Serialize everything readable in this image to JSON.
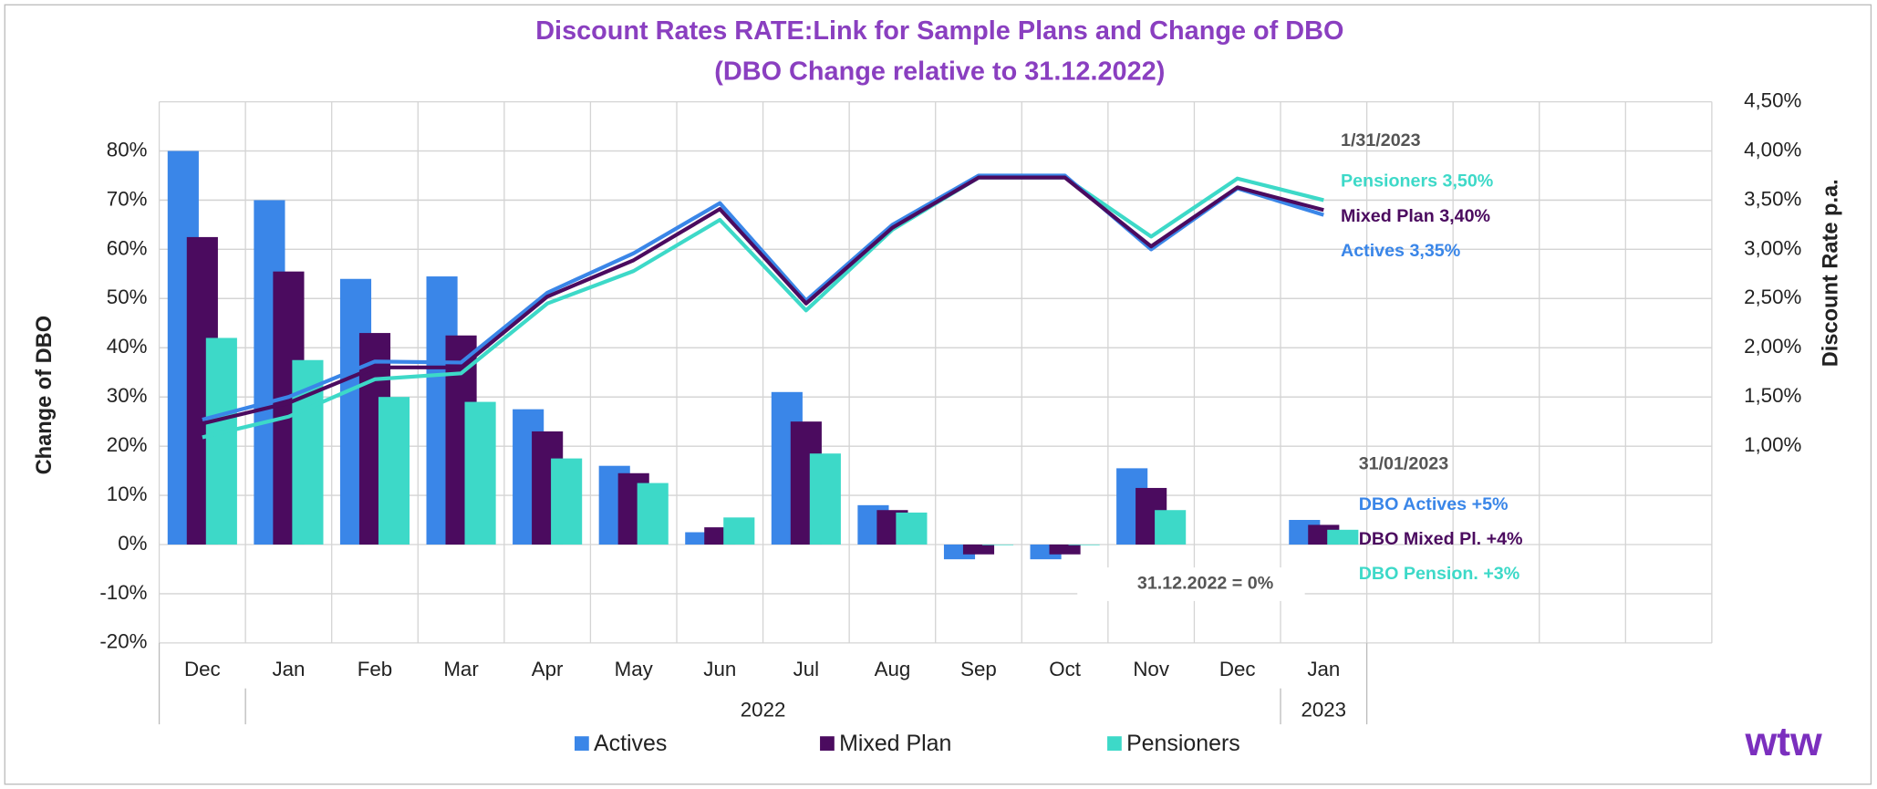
{
  "chart_data": {
    "type": "bar_line",
    "title": "Discount Rates RATE:Link for Sample Plans and Change of DBO",
    "subtitle": "(DBO Change relative to 31.12.2022)",
    "y_label": "Change of DBO",
    "y2_label": "Discount Rate p.a.",
    "categories": [
      "Dec",
      "Jan",
      "Feb",
      "Mar",
      "Apr",
      "May",
      "Jun",
      "Jul",
      "Aug",
      "Sep",
      "Oct",
      "Nov",
      "Dec",
      "Jan",
      null,
      null,
      null,
      null
    ],
    "x_groups": [
      "2022",
      "2023"
    ],
    "ylim": [
      -20,
      90
    ],
    "yticks": [
      {
        "value": -20,
        "label": "-20%"
      },
      {
        "value": -10,
        "label": "-10%"
      },
      {
        "value": 0,
        "label": "0%"
      },
      {
        "value": 10,
        "label": "10%"
      },
      {
        "value": 20,
        "label": "20%"
      },
      {
        "value": 30,
        "label": "30%"
      },
      {
        "value": 40,
        "label": "40%"
      },
      {
        "value": 50,
        "label": "50%"
      },
      {
        "value": 60,
        "label": "60%"
      },
      {
        "value": 70,
        "label": "70%"
      },
      {
        "value": 80,
        "label": "80%"
      }
    ],
    "y2lim": [
      -1,
      4.5
    ],
    "y2ticks": [
      {
        "value": 1,
        "label": "1,00%"
      },
      {
        "value": 1.5,
        "label": "1,50%"
      },
      {
        "value": 2,
        "label": "2,00%"
      },
      {
        "value": 2.5,
        "label": "2,50%"
      },
      {
        "value": 3,
        "label": "3,00%"
      },
      {
        "value": 3.5,
        "label": "3,50%"
      },
      {
        "value": 4,
        "label": "4,00%"
      },
      {
        "value": 4.5,
        "label": "4,50%"
      }
    ],
    "grid": true,
    "series": [
      {
        "name": "Actives",
        "color": "#3a86e8",
        "values": [
          80,
          70,
          54,
          54.5,
          27.5,
          16,
          2.5,
          31,
          8,
          -3,
          -3,
          15.5,
          null,
          5,
          null,
          null,
          null,
          null
        ]
      },
      {
        "name": "Mixed Plan",
        "color": "#4b0b5f",
        "values": [
          62.5,
          55.5,
          43,
          42.5,
          23,
          14.5,
          3.5,
          25,
          7,
          -2,
          -2,
          11.5,
          null,
          4,
          null,
          null,
          null,
          null
        ]
      },
      {
        "name": "Pensioners",
        "color": "#3dd9c8",
        "values": [
          42,
          37.5,
          30,
          29,
          17.5,
          12.5,
          5.5,
          18.5,
          6.5,
          0,
          0,
          7,
          null,
          3,
          null,
          null,
          null,
          null
        ]
      }
    ],
    "rate_series": [
      {
        "axis": "y2",
        "color": "#3dd9c8",
        "values": [
          1.09,
          1.3,
          1.68,
          1.74,
          2.45,
          2.78,
          3.3,
          2.38,
          3.2,
          3.73,
          3.73,
          3.13,
          3.72,
          3.5,
          null,
          null,
          null,
          null
        ]
      },
      {
        "axis": "y2",
        "color": "#3a86e8",
        "values": [
          1.27,
          1.5,
          1.86,
          1.85,
          2.56,
          2.96,
          3.47,
          2.48,
          3.25,
          3.75,
          3.75,
          3.0,
          3.62,
          3.35,
          null,
          null,
          null,
          null
        ]
      },
      {
        "axis": "y2",
        "color": "#4b0b5f",
        "values": [
          1.23,
          1.44,
          1.8,
          1.8,
          2.52,
          2.89,
          3.41,
          2.45,
          3.22,
          3.73,
          3.73,
          3.03,
          3.63,
          3.4,
          null,
          null,
          null,
          null
        ]
      }
    ],
    "annotations": {
      "rate_date": "1/31/2023",
      "rate_pensioners": "Pensioners 3,50%",
      "rate_mixed": "Mixed Plan 3,40%",
      "rate_actives": "Actives 3,35%",
      "dbo_date": "31/01/2023",
      "dbo_actives": "DBO Actives +5%",
      "dbo_mixed": "DBO Mixed Pl. +4%",
      "dbo_pensioners": "DBO Pension. +3%",
      "baseline": "31.12.2022 = 0%"
    },
    "logo": "wtw"
  }
}
